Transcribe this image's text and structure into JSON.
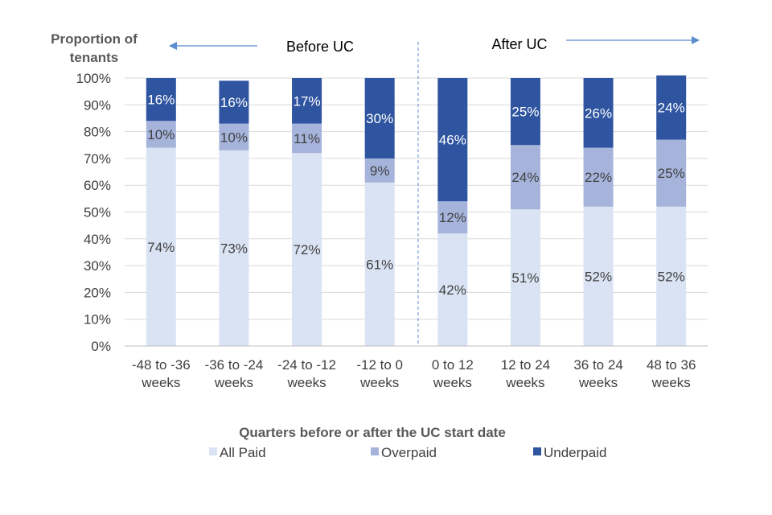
{
  "chart_data": {
    "type": "bar",
    "stacked": true,
    "ylabel": "Proportion of tenants",
    "xlabel": "Quarters before or after the UC start date",
    "ylim": [
      0,
      100
    ],
    "yticks": [
      "0%",
      "10%",
      "20%",
      "30%",
      "40%",
      "50%",
      "60%",
      "70%",
      "80%",
      "90%",
      "100%"
    ],
    "grid": true,
    "legend_position": "bottom",
    "categories": [
      [
        "-48 to -36",
        "weeks"
      ],
      [
        "-36 to -24",
        "weeks"
      ],
      [
        "-24 to -12",
        "weeks"
      ],
      [
        "-12 to 0",
        "weeks"
      ],
      [
        "0 to 12",
        "weeks"
      ],
      [
        "12 to 24",
        "weeks"
      ],
      [
        "36 to 24",
        "weeks"
      ],
      [
        "48 to 36",
        "weeks"
      ]
    ],
    "series": [
      {
        "name": "All Paid",
        "color": "#dae3f3",
        "label_color": "#404040",
        "values": [
          74,
          73,
          72,
          61,
          42,
          51,
          52,
          52
        ],
        "labels": [
          "74%",
          "73%",
          "72%",
          "61%",
          "42%",
          "51%",
          "52%",
          "52%"
        ]
      },
      {
        "name": "Overpaid",
        "color": "#a6b4dc",
        "label_color": "#404040",
        "values": [
          10,
          10,
          11,
          9,
          12,
          24,
          22,
          25
        ],
        "labels": [
          "10%",
          "10%",
          "11%",
          "9%",
          "12%",
          "24%",
          "22%",
          "25%"
        ]
      },
      {
        "name": "Underpaid",
        "color": "#2f55a0",
        "label_color": "#ffffff",
        "values": [
          16,
          16,
          17,
          30,
          46,
          25,
          26,
          24
        ],
        "labels": [
          "16%",
          "16%",
          "17%",
          "30%",
          "46%",
          "25%",
          "26%",
          "24%"
        ]
      }
    ],
    "annotations": {
      "before": "Before UC",
      "after": "After UC"
    },
    "arrow_color": "#5b8ccc"
  }
}
